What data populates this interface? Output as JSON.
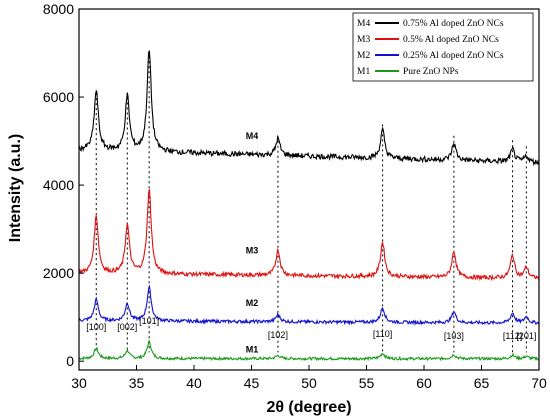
{
  "chart_data": {
    "type": "line",
    "xlabel": "2θ (degree)",
    "ylabel": "Intensity (a.u.)",
    "xlim": [
      30,
      70
    ],
    "ylim": [
      -200,
      8000
    ],
    "x_ticks": [
      "30",
      "35",
      "40",
      "45",
      "50",
      "55",
      "60",
      "65",
      "70"
    ],
    "y_ticks": [
      "0",
      "2000",
      "4000",
      "6000",
      "8000"
    ],
    "legend_position": "top-right",
    "peaks": [
      {
        "pos": 31.5,
        "label": "[100]"
      },
      {
        "pos": 34.2,
        "label": "[002]"
      },
      {
        "pos": 36.1,
        "label": "[101]"
      },
      {
        "pos": 47.3,
        "label": "[102]"
      },
      {
        "pos": 56.4,
        "label": "[110]"
      },
      {
        "pos": 62.6,
        "label": "[103]"
      },
      {
        "pos": 67.7,
        "label": "[112]"
      },
      {
        "pos": 68.9,
        "label": "[201]"
      }
    ],
    "series": [
      {
        "id": "M1",
        "name": "Pure ZnO NPs",
        "color": "#1a9a1a",
        "baseline": 60,
        "noise": 30,
        "curve_label": "M1",
        "curve_label_x": 44.5,
        "curve_label_y": 200,
        "heights": [
          230,
          180,
          380,
          70,
          120,
          90,
          80,
          50
        ]
      },
      {
        "id": "M2",
        "name": "0.25% Al doped ZnO NCs",
        "color": "#1010d0",
        "baseline": 920,
        "noise": 35,
        "curve_label": "M2",
        "curve_label_x": 44.5,
        "curve_label_y": 1250,
        "heights": [
          480,
          400,
          760,
          160,
          330,
          250,
          220,
          140
        ]
      },
      {
        "id": "M3",
        "name": "0.5% Al doped ZnO NCs",
        "color": "#e01010",
        "baseline": 2000,
        "noise": 45,
        "curve_label": "M3",
        "curve_label_x": 44.5,
        "curve_label_y": 2450,
        "heights": [
          1300,
          1100,
          1900,
          580,
          780,
          590,
          520,
          240
        ]
      },
      {
        "id": "M4",
        "name": "0.75% Al doped ZnO NCs",
        "color": "#000000",
        "baseline": 4800,
        "noise": 60,
        "curve_label": "M4",
        "curve_label_x": 44.5,
        "curve_label_y": 5050,
        "heights": [
          1350,
          1250,
          2300,
          380,
          640,
          380,
          280,
          140
        ]
      }
    ],
    "legend": [
      {
        "id": "M4",
        "name": "0.75% Al doped ZnO NCs",
        "color": "#000000"
      },
      {
        "id": "M3",
        "name": "0.5% Al doped ZnO NCs",
        "color": "#e01010"
      },
      {
        "id": "M2",
        "name": "0.25% Al doped ZnO NCs",
        "color": "#1010d0"
      },
      {
        "id": "M1",
        "name": "Pure ZnO NPs",
        "color": "#1a9a1a"
      }
    ]
  }
}
